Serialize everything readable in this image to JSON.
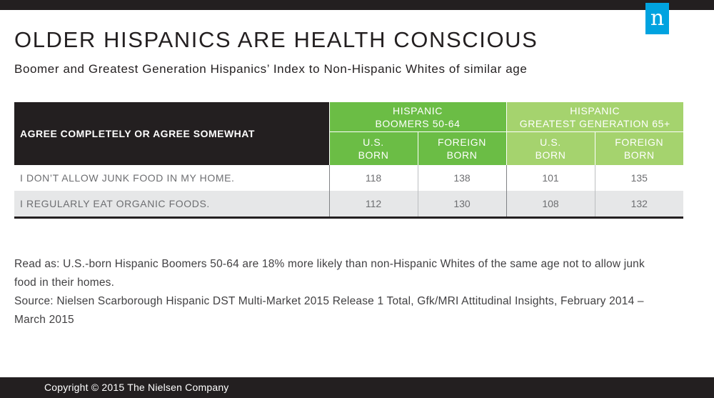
{
  "logo": {
    "letter": "n",
    "color": "#00a3e0"
  },
  "title": "OLDER HISPANICS ARE HEALTH CONSCIOUS",
  "subtitle": "Boomer and Greatest Generation Hispanics’ Index to Non-Hispanic Whites of similar age",
  "table": {
    "question_header": "AGREE COMPLETELY OR AGREE SOMEWHAT",
    "groups": [
      {
        "line1": "HISPANIC",
        "line2": "BOOMERS 50-64",
        "color": "#6bbd45"
      },
      {
        "line1": "HISPANIC",
        "line2": "GREATEST GENERATION 65+",
        "color": "#a5d36e"
      }
    ],
    "subheaders": [
      {
        "line1": "U.S.",
        "line2": "BORN"
      },
      {
        "line1": "FOREIGN",
        "line2": "BORN"
      },
      {
        "line1": "U.S.",
        "line2": "BORN"
      },
      {
        "line1": "FOREIGN",
        "line2": "BORN"
      }
    ],
    "rows": [
      {
        "label": "I DON’T ALLOW JUNK FOOD IN MY HOME.",
        "values": [
          "118",
          "138",
          "101",
          "135"
        ]
      },
      {
        "label": "I REGULARLY EAT ORGANIC FOODS.",
        "values": [
          "112",
          "130",
          "108",
          "132"
        ]
      }
    ]
  },
  "notes": {
    "read_as": "Read as: U.S.-born Hispanic Boomers 50-64 are 18% more likely than non-Hispanic Whites of the same age not to allow junk food in their homes.",
    "source": "Source: Nielsen Scarborough Hispanic DST Multi-Market 2015 Release 1 Total, Gfk/MRI Attitudinal Insights, February 2014 – March 2015"
  },
  "footer": {
    "copyright": "Copyright © 2015 The Nielsen Company"
  }
}
